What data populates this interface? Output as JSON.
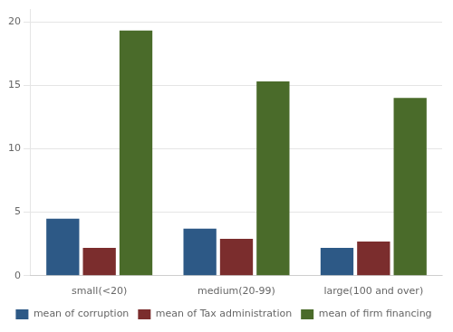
{
  "chart_data": {
    "type": "bar",
    "categories": [
      "small(<20)",
      "medium(20-99)",
      "large(100 and over)"
    ],
    "series": [
      {
        "name": "mean of corruption",
        "color": "#2d5986",
        "values": [
          4.5,
          3.7,
          2.2
        ]
      },
      {
        "name": "mean of Tax administration",
        "color": "#7b2d2d",
        "values": [
          2.2,
          2.9,
          2.7
        ]
      },
      {
        "name": "mean of firm financing",
        "color": "#4a6b2a",
        "values": [
          19.3,
          15.3,
          14.0
        ]
      }
    ],
    "ylim": [
      0,
      21
    ],
    "yticks": [
      0,
      5,
      10,
      15,
      20
    ],
    "grid": true,
    "legend": "bottom"
  }
}
